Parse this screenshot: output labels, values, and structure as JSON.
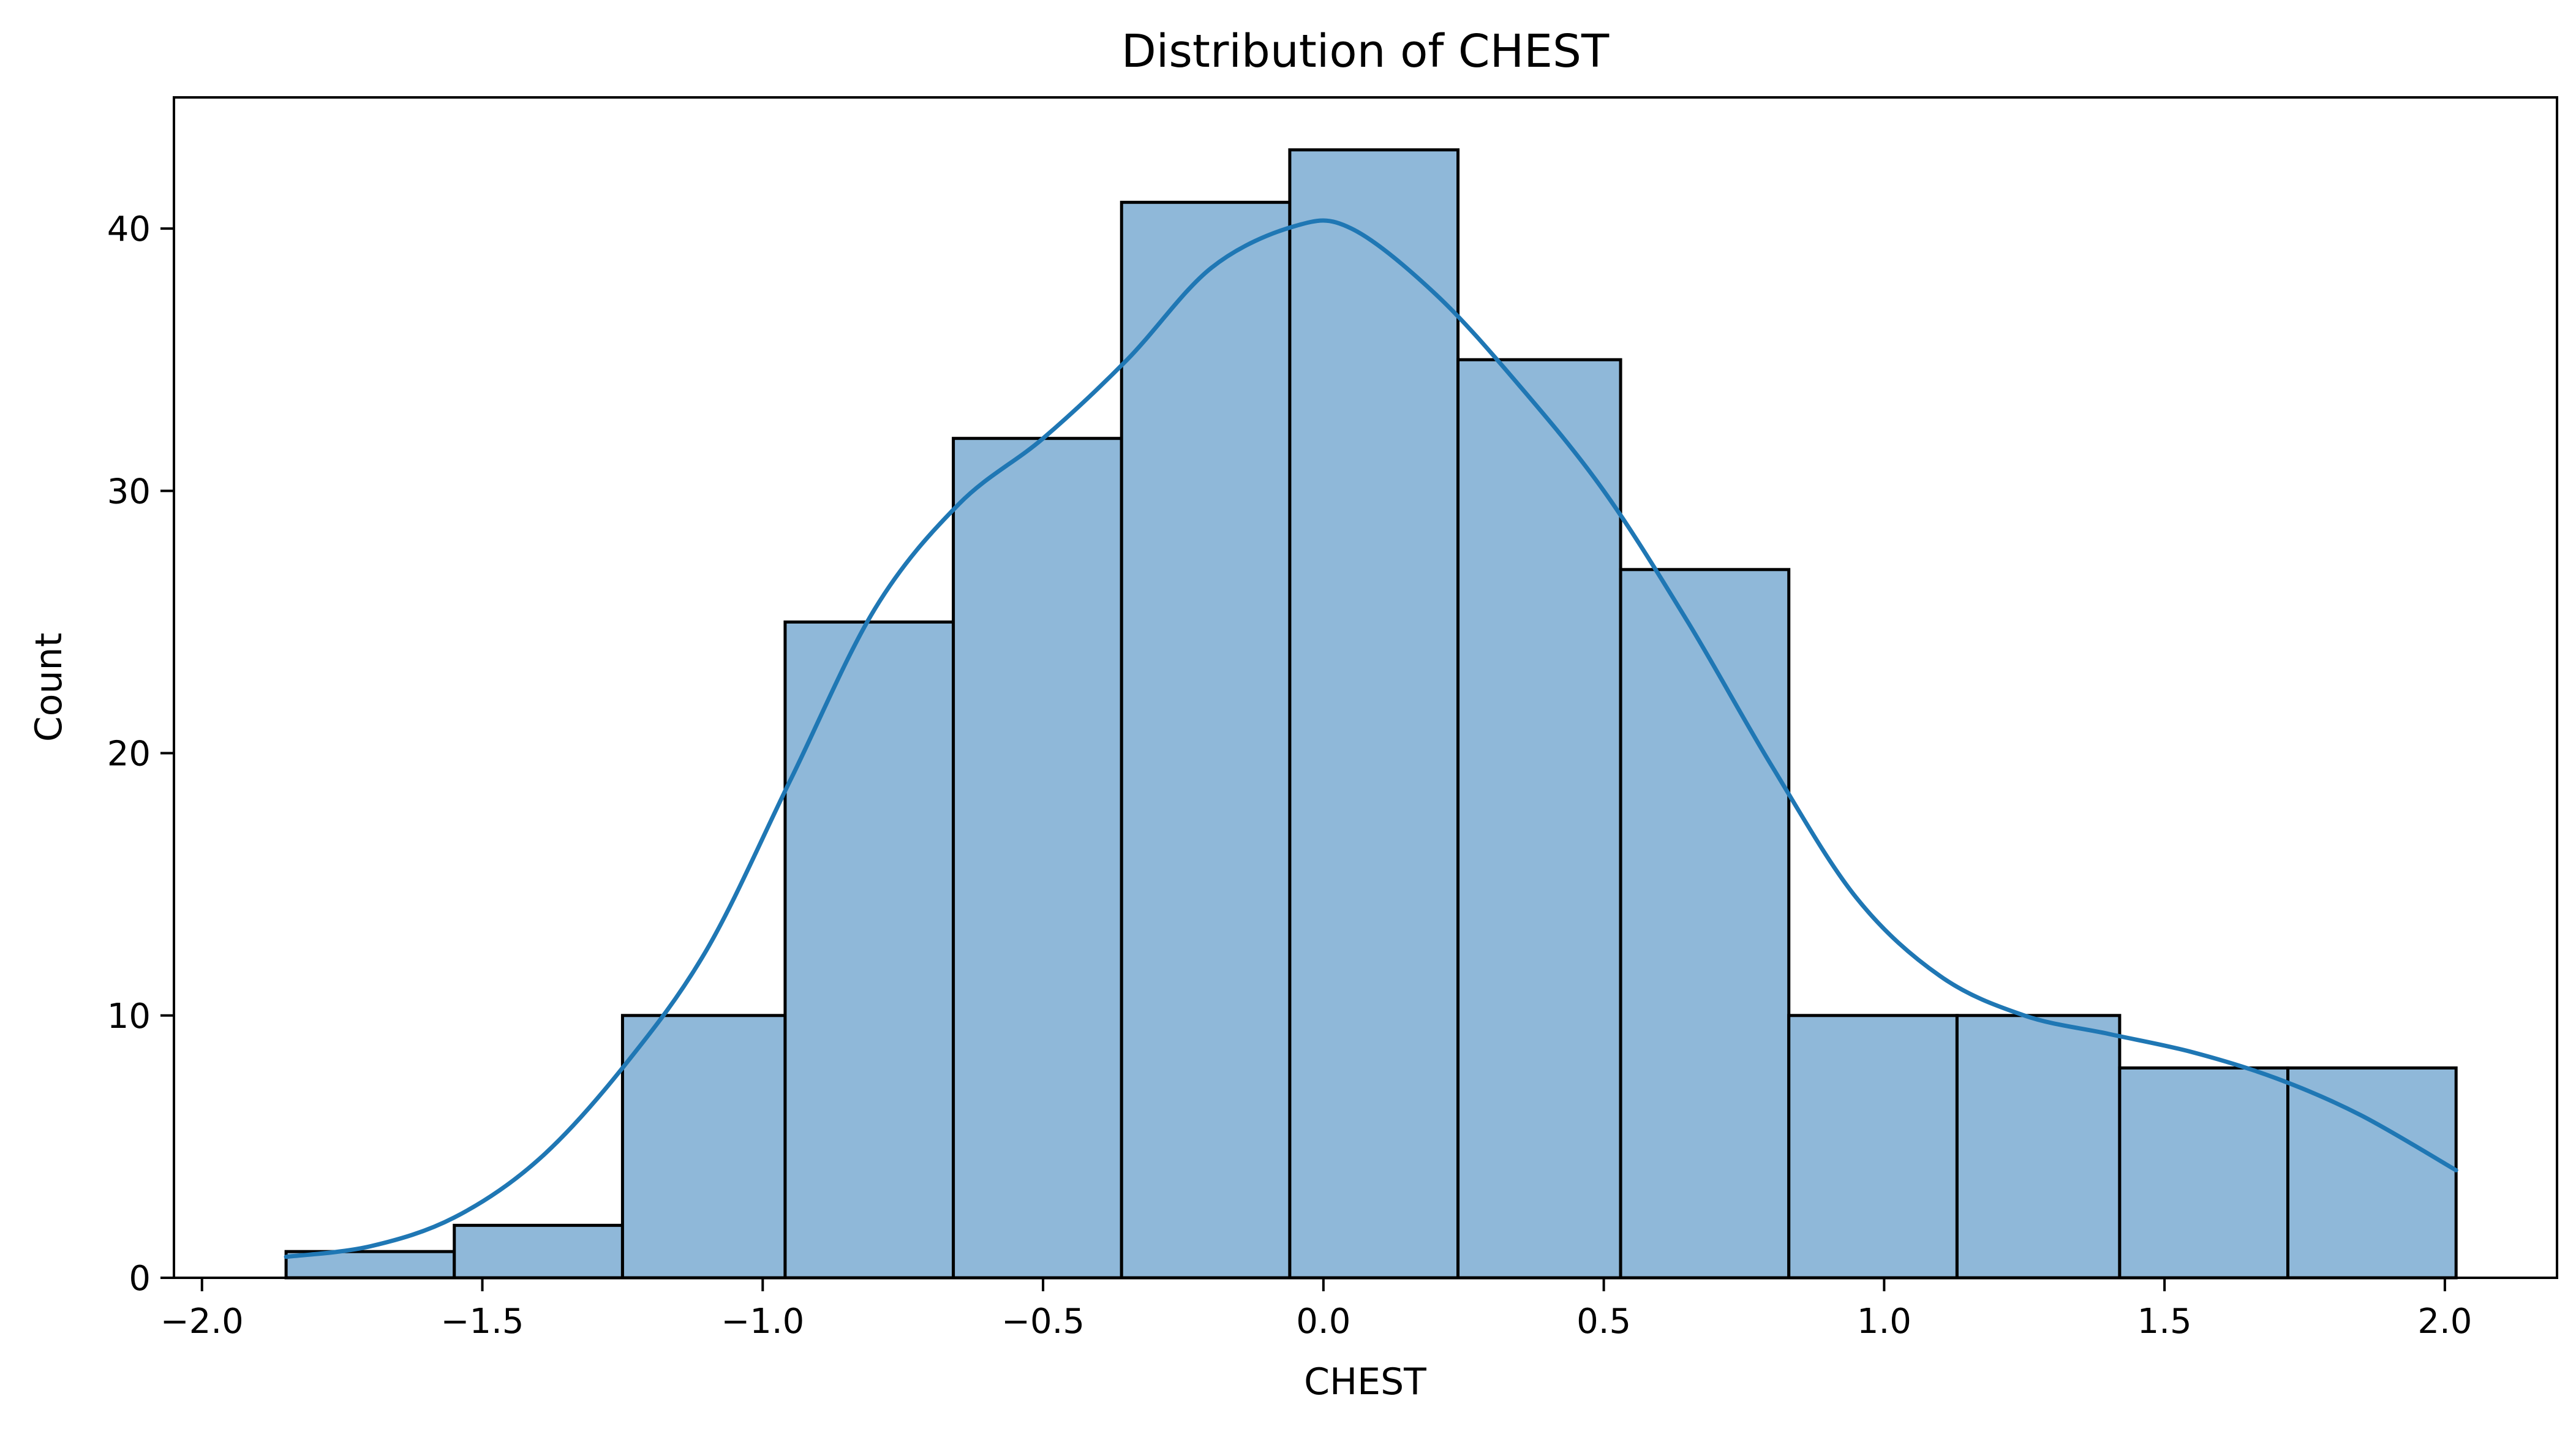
{
  "chart_data": {
    "type": "bar",
    "subtype": "histogram-with-kde",
    "title": "Distribution of CHEST",
    "xlabel": "CHEST",
    "ylabel": "Count",
    "xlim": [
      -2.05,
      2.2
    ],
    "ylim": [
      0,
      45
    ],
    "x_ticks": [
      -2.0,
      -1.5,
      -1.0,
      -0.5,
      0.0,
      0.5,
      1.0,
      1.5,
      2.0
    ],
    "x_tick_labels": [
      "−2.0",
      "−1.5",
      "−1.0",
      "−0.5",
      "0.0",
      "0.5",
      "1.0",
      "1.5",
      "2.0"
    ],
    "y_ticks": [
      0,
      10,
      20,
      30,
      40
    ],
    "y_tick_labels": [
      "0",
      "10",
      "20",
      "30",
      "40"
    ],
    "bin_edges": [
      -1.85,
      -1.55,
      -1.25,
      -0.96,
      -0.66,
      -0.36,
      -0.06,
      0.24,
      0.53,
      0.83,
      1.13,
      1.42,
      1.72,
      2.02
    ],
    "counts": [
      1,
      2,
      10,
      25,
      32,
      41,
      43,
      35,
      27,
      10,
      10,
      8,
      8
    ],
    "kde": {
      "x": [
        -1.85,
        -1.7,
        -1.55,
        -1.4,
        -1.25,
        -1.1,
        -0.95,
        -0.8,
        -0.65,
        -0.5,
        -0.35,
        -0.2,
        -0.05,
        0.05,
        0.2,
        0.35,
        0.5,
        0.65,
        0.8,
        0.95,
        1.1,
        1.25,
        1.4,
        1.55,
        1.7,
        1.85,
        2.02
      ],
      "y": [
        0.8,
        1.2,
        2.3,
        4.5,
        8.0,
        12.5,
        19.0,
        25.5,
        29.5,
        32.0,
        35.0,
        38.5,
        40.1,
        40.0,
        37.5,
        34.0,
        30.0,
        25.0,
        19.5,
        14.5,
        11.5,
        10.0,
        9.3,
        8.6,
        7.6,
        6.2,
        4.1
      ]
    },
    "colors": {
      "bar_fill": "#8fb8d9",
      "bar_edge": "#000000",
      "kde_line": "#1f77b4"
    },
    "grid": false,
    "legend": "none"
  }
}
